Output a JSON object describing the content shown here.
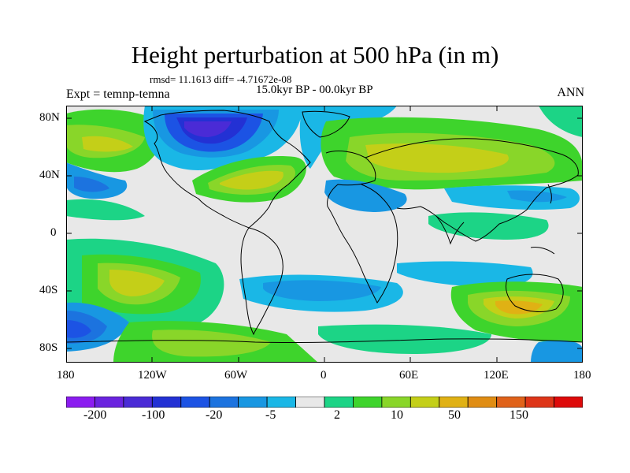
{
  "title": "Height perturbation at 500 hPa (in m)",
  "stats": "rmsd= 11.1613 diff= -4.71672e-08",
  "period": "15.0kyr BP - 00.0kyr BP",
  "expt": "Expt = temnp-temna",
  "season": "ANN",
  "lat_labels": [
    "80N",
    "40N",
    "0",
    "40S",
    "80S"
  ],
  "lon_labels": [
    "180",
    "120W",
    "60W",
    "0",
    "60E",
    "120E",
    "180"
  ],
  "colorbar": {
    "colors": [
      "#8b1cf0",
      "#6a23df",
      "#4a2bd6",
      "#2331d4",
      "#1c53e4",
      "#1c73df",
      "#1897e2",
      "#1ab7e6",
      "#e8e8e8",
      "#1cd486",
      "#3ed42c",
      "#89d629",
      "#c4cf18",
      "#e0b114",
      "#e08d13",
      "#e0621a",
      "#de3518",
      "#de0a0a"
    ],
    "labels": [
      "-200",
      "-100",
      "-20",
      "-5",
      "2",
      "10",
      "50",
      "150"
    ]
  }
}
